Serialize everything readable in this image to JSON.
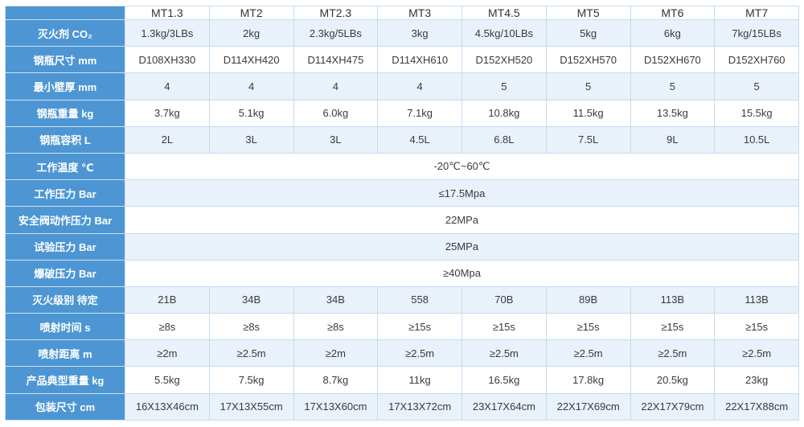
{
  "theme": {
    "accent": "#4d96d3",
    "stripe": "#e9f1fa",
    "border": "#c5dcf0"
  },
  "spec_table": {
    "columns": [
      "MT1.3",
      "MT2",
      "MT2.3",
      "MT3",
      "MT4.5",
      "MT5",
      "MT6",
      "MT7"
    ],
    "rows": [
      {
        "label": "灭火剂 CO₂",
        "values": [
          "1.3kg/3LBs",
          "2kg",
          "2.3kg/5LBs",
          "3kg",
          "4.5kg/10LBs",
          "5kg",
          "6kg",
          "7kg/15LBs"
        ]
      },
      {
        "label": "钢瓶尺寸 mm",
        "values": [
          "D108XH330",
          "D114XH420",
          "D114XH475",
          "D114XH610",
          "D152XH520",
          "D152XH570",
          "D152XH670",
          "D152XH760"
        ]
      },
      {
        "label": "最小壁厚 mm",
        "values": [
          "4",
          "4",
          "4",
          "4",
          "5",
          "5",
          "5",
          "5"
        ]
      },
      {
        "label": "钢瓶重量 kg",
        "values": [
          "3.7kg",
          "5.1kg",
          "6.0kg",
          "7.1kg",
          "10.8kg",
          "11.5kg",
          "13.5kg",
          "15.5kg"
        ]
      },
      {
        "label": "钢瓶容积 L",
        "values": [
          "2L",
          "3L",
          "3L",
          "4.5L",
          "6.8L",
          "7.5L",
          "9L",
          "10.5L"
        ]
      },
      {
        "label": "工作温度 ℃",
        "span_value": "-20℃~60℃"
      },
      {
        "label": "工作压力 Bar",
        "span_value": "≤17.5Mpa"
      },
      {
        "label": "安全阀动作压力 Bar",
        "span_value": "22MPa"
      },
      {
        "label": "试验压力 Bar",
        "span_value": "25MPa"
      },
      {
        "label": "爆破压力 Bar",
        "span_value": "≥40Mpa"
      },
      {
        "label": "灭火级别 待定",
        "values": [
          "21B",
          "34B",
          "34B",
          "558",
          "70B",
          "89B",
          "113B",
          "113B"
        ]
      },
      {
        "label": "喷射时间 s",
        "values": [
          "≥8s",
          "≥8s",
          "≥8s",
          "≥15s",
          "≥15s",
          "≥15s",
          "≥15s",
          "≥15s"
        ]
      },
      {
        "label": "喷射距离 m",
        "values": [
          "≥2m",
          "≥2.5m",
          "≥2m",
          "≥2.5m",
          "≥2.5m",
          "≥2.5m",
          "≥2.5m",
          "≥2.5m"
        ]
      },
      {
        "label": "产品典型重量 kg",
        "values": [
          "5.5kg",
          "7.5kg",
          "8.7kg",
          "11kg",
          "16.5kg",
          "17.8kg",
          "20.5kg",
          "23kg"
        ]
      },
      {
        "label": "包装尺寸 cm",
        "values": [
          "16X13X46cm",
          "17X13X55cm",
          "17X13X60cm",
          "17X13X72cm",
          "23X17X64cm",
          "22X17X69cm",
          "22X17X79cm",
          "22X17X88cm"
        ]
      }
    ]
  }
}
